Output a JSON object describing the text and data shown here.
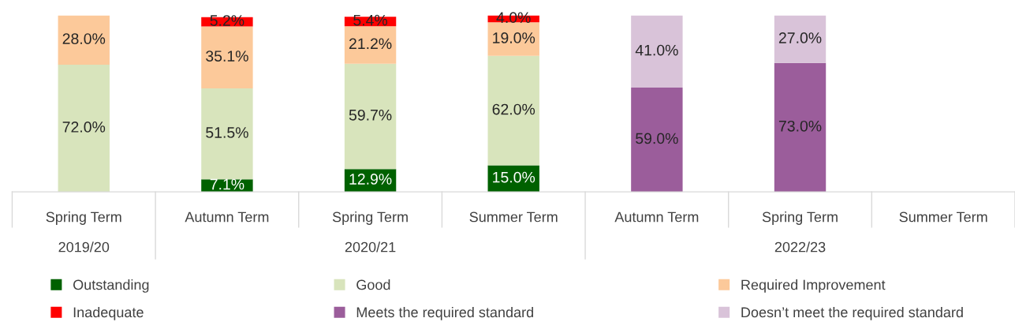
{
  "chart_data": {
    "type": "bar",
    "stacked": true,
    "categories": [
      "Spring Term",
      "Autumn Term",
      "Spring Term",
      "Summer Term",
      "Autumn Term",
      "Spring Term",
      "Summer Term"
    ],
    "annotations": [
      "2019/20",
      "2020/21",
      "2022/23"
    ],
    "ylim": [
      0,
      100
    ],
    "tick_labels": "x",
    "grid": false,
    "legend": "bottom",
    "series": [
      {
        "name": "Outstanding",
        "color": "#006100",
        "values": [
          null,
          7.1,
          12.9,
          15.0,
          null,
          null,
          null
        ],
        "value_labels": [
          null,
          "7.1%",
          "12.9%",
          "15.0%",
          null,
          null,
          null
        ]
      },
      {
        "name": "Good",
        "color": "#d8e4bc",
        "values": [
          72.0,
          51.5,
          59.7,
          62.0,
          null,
          null,
          null
        ],
        "value_labels": [
          "72.0%",
          "51.5%",
          "59.7%",
          "62.0%",
          null,
          null,
          null
        ]
      },
      {
        "name": "Required Improvement",
        "color": "#fcc99a",
        "values": [
          28.0,
          35.1,
          21.2,
          19.0,
          null,
          null,
          null
        ],
        "value_labels": [
          "28.0%",
          "35.1%",
          "21.2%",
          "19.0%",
          null,
          null,
          null
        ]
      },
      {
        "name": "Inadequate",
        "color": "#ff0000",
        "values": [
          null,
          5.2,
          5.4,
          4.0,
          null,
          null,
          null
        ],
        "value_labels": [
          null,
          "5.2%",
          "5.4%",
          "4.0%",
          null,
          null,
          null
        ]
      },
      {
        "name": "Meets the required standard",
        "color": "#9b5d9b",
        "values": [
          null,
          null,
          null,
          null,
          59.0,
          73.0,
          null
        ],
        "value_labels": [
          null,
          null,
          null,
          null,
          "59.0%",
          "73.0%",
          null
        ]
      },
      {
        "name": "Doesn’t meet the required standard",
        "color": "#d9c3d9",
        "values": [
          null,
          null,
          null,
          null,
          41.0,
          27.0,
          null
        ],
        "value_labels": [
          null,
          null,
          null,
          null,
          "41.0%",
          "27.0%",
          null
        ]
      }
    ]
  }
}
